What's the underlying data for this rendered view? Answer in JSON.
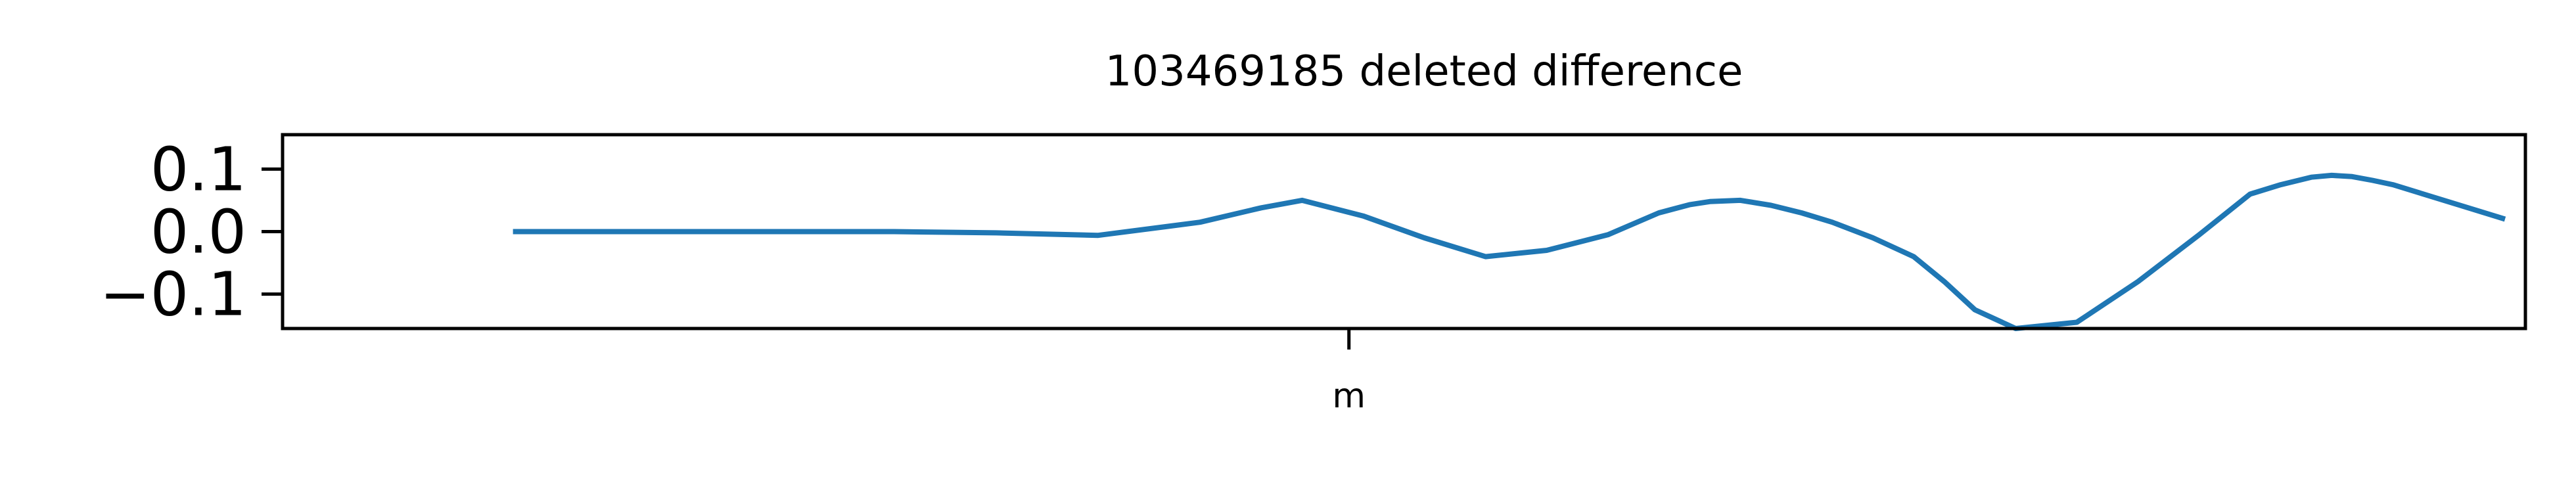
{
  "chart_data": {
    "type": "line",
    "title": "103469185 deleted difference",
    "xlabel": "",
    "ylabel": "",
    "x_ticks": [
      {
        "label": "m",
        "x": 0.423
      }
    ],
    "xlim": [
      -0.1,
      1.0
    ],
    "ylim": [
      -0.155,
      0.155
    ],
    "y_ticks": [
      {
        "value": 0.1,
        "label": "0.1"
      },
      {
        "value": 0.0,
        "label": "0.0"
      },
      {
        "value": -0.1,
        "label": "−0.1"
      }
    ],
    "grid": false,
    "legend": "none",
    "series": [
      {
        "color": "#1f77b4",
        "x": [
          0.013,
          0.1,
          0.2,
          0.25,
          0.3,
          0.35,
          0.38,
          0.4,
          0.43,
          0.46,
          0.49,
          0.52,
          0.55,
          0.575,
          0.59,
          0.6,
          0.615,
          0.63,
          0.645,
          0.66,
          0.68,
          0.7,
          0.715,
          0.73,
          0.75,
          0.78,
          0.81,
          0.84,
          0.865,
          0.88,
          0.895,
          0.905,
          0.915,
          0.925,
          0.935,
          0.95,
          0.97,
          0.99
        ],
        "y": [
          0.0,
          0.0,
          0.0,
          -0.002,
          -0.006,
          0.015,
          0.038,
          0.05,
          0.025,
          -0.01,
          -0.04,
          -0.03,
          -0.005,
          0.03,
          0.043,
          0.048,
          0.05,
          0.042,
          0.03,
          0.015,
          -0.01,
          -0.04,
          -0.08,
          -0.125,
          -0.155,
          -0.145,
          -0.08,
          -0.005,
          0.06,
          0.075,
          0.087,
          0.09,
          0.088,
          0.082,
          0.075,
          0.06,
          0.04,
          0.02
        ]
      }
    ]
  }
}
